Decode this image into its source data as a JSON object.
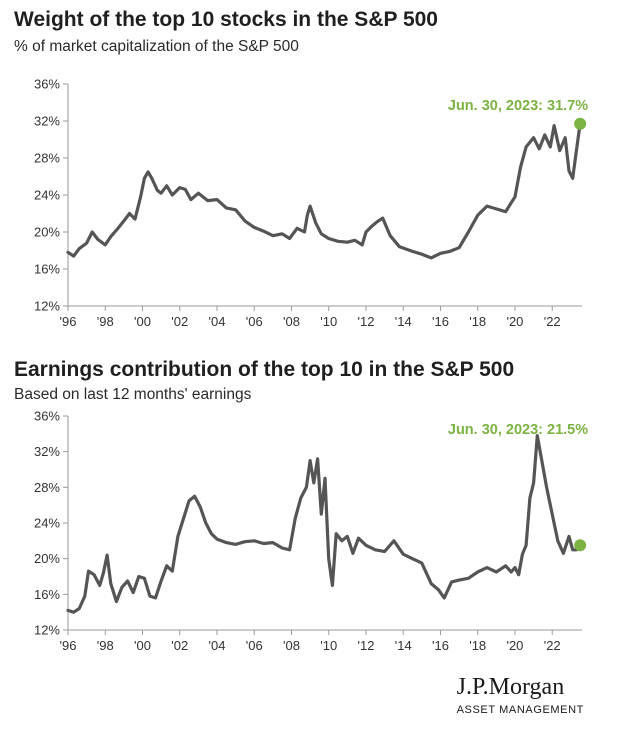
{
  "colors": {
    "line": "#555555",
    "highlight": "#7cb342",
    "annotation": "#7cb342",
    "axis": "#9a9a9a"
  },
  "chart_data": [
    {
      "type": "line",
      "title": "Weight of the top 10 stocks in the S&P 500",
      "subtitle": "% of market capitalization of the S&P 500",
      "xlabel": "",
      "ylabel": "",
      "xlim": [
        1996,
        2023.6
      ],
      "ylim": [
        12,
        36
      ],
      "y_ticks": [
        "12%",
        "16%",
        "20%",
        "24%",
        "28%",
        "32%",
        "36%"
      ],
      "x_ticks": [
        "'96",
        "'98",
        "'00",
        "'02",
        "'04",
        "'06",
        "'08",
        "'10",
        "'12",
        "'14",
        "'16",
        "'18",
        "'20",
        "'22"
      ],
      "grid": false,
      "series": [
        {
          "x": [
            1996.0,
            1996.3,
            1996.6,
            1997.0,
            1997.3,
            1997.6,
            1998.0,
            1998.3,
            1998.6,
            1999.0,
            1999.3,
            1999.6,
            1999.9,
            2000.1,
            2000.3,
            2000.5,
            2000.8,
            2001.0,
            2001.3,
            2001.6,
            2002.0,
            2002.3,
            2002.6,
            2003.0,
            2003.5,
            2004.0,
            2004.5,
            2005.0,
            2005.5,
            2006.0,
            2006.5,
            2007.0,
            2007.5,
            2007.9,
            2008.3,
            2008.7,
            2008.85,
            2009.0,
            2009.3,
            2009.6,
            2010.0,
            2010.5,
            2011.0,
            2011.4,
            2011.8,
            2012.0,
            2012.3,
            2012.6,
            2012.9,
            2013.3,
            2013.8,
            2014.5,
            2015.0,
            2015.5,
            2016.0,
            2016.5,
            2017.0,
            2017.5,
            2018.0,
            2018.5,
            2019.0,
            2019.5,
            2020.0,
            2020.3,
            2020.6,
            2021.0,
            2021.3,
            2021.6,
            2021.9,
            2022.1,
            2022.4,
            2022.7,
            2022.9,
            2023.1,
            2023.3,
            2023.5
          ],
          "y": [
            17.8,
            17.4,
            18.2,
            18.8,
            20.0,
            19.2,
            18.6,
            19.5,
            20.2,
            21.2,
            22.0,
            21.4,
            23.8,
            25.8,
            26.5,
            25.8,
            24.5,
            24.2,
            25.0,
            24.0,
            24.8,
            24.6,
            23.5,
            24.2,
            23.4,
            23.5,
            22.6,
            22.4,
            21.2,
            20.5,
            20.1,
            19.6,
            19.8,
            19.3,
            20.4,
            20.0,
            21.8,
            22.8,
            21.0,
            19.8,
            19.3,
            19.0,
            18.9,
            19.1,
            18.6,
            20.0,
            20.6,
            21.1,
            21.5,
            19.6,
            18.4,
            17.9,
            17.6,
            17.2,
            17.7,
            17.9,
            18.3,
            20.0,
            21.8,
            22.8,
            22.5,
            22.2,
            23.8,
            27.0,
            29.2,
            30.2,
            29.0,
            30.5,
            29.2,
            31.5,
            28.8,
            30.2,
            26.6,
            25.8,
            28.8,
            31.7
          ]
        }
      ],
      "highlight": {
        "x": 2023.5,
        "y": 31.7,
        "label": "Jun. 30, 2023: 31.7%"
      }
    },
    {
      "type": "line",
      "title": "Earnings contribution of the top 10 in the S&P 500",
      "subtitle": "Based on last 12 months' earnings",
      "xlabel": "",
      "ylabel": "",
      "xlim": [
        1996,
        2023.6
      ],
      "ylim": [
        12,
        36
      ],
      "y_ticks": [
        "12%",
        "16%",
        "20%",
        "24%",
        "28%",
        "32%",
        "36%"
      ],
      "x_ticks": [
        "'96",
        "'98",
        "'00",
        "'02",
        "'04",
        "'06",
        "'08",
        "'10",
        "'12",
        "'14",
        "'16",
        "'18",
        "'20",
        "'22"
      ],
      "grid": false,
      "series": [
        {
          "x": [
            1996.0,
            1996.3,
            1996.6,
            1996.9,
            1997.1,
            1997.4,
            1997.7,
            1997.9,
            1998.1,
            1998.3,
            1998.6,
            1998.9,
            1999.2,
            1999.5,
            1999.8,
            2000.1,
            2000.4,
            2000.7,
            2001.0,
            2001.3,
            2001.6,
            2001.9,
            2002.2,
            2002.5,
            2002.8,
            2003.1,
            2003.4,
            2003.7,
            2004.0,
            2004.5,
            2005.0,
            2005.5,
            2006.0,
            2006.5,
            2007.0,
            2007.5,
            2007.9,
            2008.2,
            2008.5,
            2008.8,
            2009.0,
            2009.2,
            2009.4,
            2009.6,
            2009.8,
            2010.0,
            2010.2,
            2010.4,
            2010.7,
            2011.0,
            2011.3,
            2011.6,
            2012.0,
            2012.5,
            2013.0,
            2013.5,
            2014.0,
            2014.5,
            2015.0,
            2015.5,
            2015.9,
            2016.2,
            2016.6,
            2017.0,
            2017.5,
            2018.0,
            2018.5,
            2019.0,
            2019.5,
            2019.8,
            2020.0,
            2020.2,
            2020.4,
            2020.6,
            2020.8,
            2021.0,
            2021.2,
            2021.4,
            2021.7,
            2022.0,
            2022.3,
            2022.6,
            2022.9,
            2023.1,
            2023.3,
            2023.5
          ],
          "y": [
            14.2,
            14.0,
            14.4,
            15.8,
            18.6,
            18.2,
            17.0,
            18.4,
            20.4,
            17.2,
            15.2,
            16.8,
            17.5,
            16.2,
            18.0,
            17.8,
            15.8,
            15.6,
            17.5,
            19.2,
            18.6,
            22.5,
            24.5,
            26.5,
            27.0,
            25.8,
            24.0,
            22.8,
            22.2,
            21.8,
            21.6,
            21.9,
            22.0,
            21.7,
            21.8,
            21.2,
            21.0,
            24.5,
            26.8,
            28.0,
            31.0,
            28.5,
            31.2,
            25.0,
            29.0,
            20.0,
            17.0,
            22.8,
            22.0,
            22.5,
            20.6,
            22.3,
            21.5,
            21.0,
            20.8,
            22.0,
            20.5,
            20.0,
            19.5,
            17.2,
            16.5,
            15.6,
            17.4,
            17.6,
            17.8,
            18.5,
            19.0,
            18.5,
            19.2,
            18.5,
            19.0,
            18.2,
            20.5,
            21.5,
            26.8,
            28.5,
            33.8,
            31.5,
            28.0,
            25.0,
            22.0,
            20.6,
            22.5,
            21.0,
            21.0,
            21.5
          ]
        }
      ],
      "highlight": {
        "x": 2023.5,
        "y": 21.5,
        "label": "Jun. 30, 2023: 21.5%"
      }
    }
  ],
  "logo": {
    "name": "J.P.Morgan",
    "sub": "ASSET MANAGEMENT"
  }
}
